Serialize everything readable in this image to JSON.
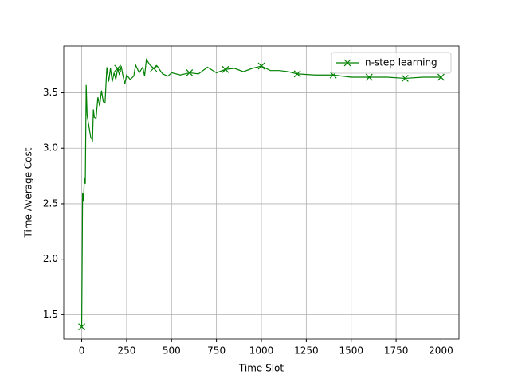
{
  "chart_data": {
    "type": "line",
    "xlabel": "Time Slot",
    "ylabel": "Time Average Cost",
    "x": [
      0,
      5,
      10,
      15,
      20,
      25,
      30,
      40,
      50,
      60,
      65,
      70,
      80,
      90,
      100,
      110,
      120,
      130,
      140,
      150,
      160,
      170,
      180,
      190,
      200,
      210,
      220,
      230,
      240,
      250,
      270,
      290,
      300,
      320,
      340,
      350,
      360,
      380,
      400,
      420,
      450,
      480,
      500,
      550,
      600,
      650,
      700,
      750,
      800,
      850,
      900,
      950,
      1000,
      1050,
      1100,
      1150,
      1200,
      1300,
      1400,
      1450,
      1500,
      1600,
      1700,
      1800,
      1900,
      2000
    ],
    "series": [
      {
        "name": "n-step learning",
        "color": "#008000",
        "marker": "x",
        "markevery": 200,
        "values": [
          1.39,
          2.6,
          2.52,
          2.73,
          2.68,
          3.57,
          3.3,
          3.2,
          3.1,
          3.07,
          3.35,
          3.28,
          3.27,
          3.46,
          3.38,
          3.52,
          3.42,
          3.41,
          3.73,
          3.6,
          3.72,
          3.6,
          3.68,
          3.62,
          3.72,
          3.66,
          3.74,
          3.65,
          3.58,
          3.66,
          3.62,
          3.65,
          3.75,
          3.68,
          3.73,
          3.65,
          3.8,
          3.75,
          3.72,
          3.74,
          3.67,
          3.65,
          3.68,
          3.66,
          3.68,
          3.67,
          3.73,
          3.68,
          3.71,
          3.72,
          3.69,
          3.72,
          3.74,
          3.7,
          3.7,
          3.69,
          3.67,
          3.66,
          3.66,
          3.65,
          3.64,
          3.64,
          3.64,
          3.63,
          3.64,
          3.64
        ]
      }
    ],
    "xlim": [
      -100,
      2100
    ],
    "ylim": [
      1.28,
      3.92
    ],
    "xticks": [
      0,
      250,
      500,
      750,
      1000,
      1250,
      1500,
      1750,
      2000
    ],
    "yticks": [
      {
        "value": 1.5,
        "label": "1.5"
      },
      {
        "value": 2,
        "label": "2.0"
      },
      {
        "value": 2.5,
        "label": "2.5"
      },
      {
        "value": 3,
        "label": "3.0"
      },
      {
        "value": 3.5,
        "label": "3.5"
      }
    ],
    "grid": true,
    "legend": "upper right"
  }
}
